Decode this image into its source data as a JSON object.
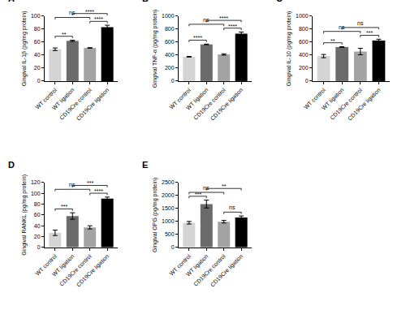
{
  "chart_data": [
    {
      "type": "bar",
      "panel": "A",
      "y_label": "Gingival IL-1β (pg/mg protein)",
      "categories": [
        "WT control",
        "WT ligation",
        "CD19Cre control",
        "CD19Cre ligation"
      ],
      "values": [
        49,
        62,
        51,
        83
      ],
      "errors": [
        2,
        1,
        0.5,
        3
      ],
      "colors": [
        "#d4d4d4",
        "#6b6b6b",
        "#a3a3a3",
        "#000000"
      ],
      "ylim": [
        0,
        100
      ],
      "yticks": [
        0,
        20,
        40,
        60,
        80,
        100
      ],
      "comparisons": [
        {
          "from": 0,
          "to": 1,
          "label": "**"
        },
        {
          "from": 0,
          "to": 2,
          "label": "ns"
        },
        {
          "from": 1,
          "to": 3,
          "label": "****"
        },
        {
          "from": 2,
          "to": 3,
          "label": "****"
        }
      ]
    },
    {
      "type": "bar",
      "panel": "B",
      "y_label": "Gingival TNF-α (pg/mg protein)",
      "categories": [
        "WT control",
        "WT ligation",
        "CD19Cre control",
        "CD19Cre ligation"
      ],
      "values": [
        375,
        565,
        410,
        730
      ],
      "errors": [
        5,
        5,
        10,
        25
      ],
      "colors": [
        "#d4d4d4",
        "#6b6b6b",
        "#a3a3a3",
        "#000000"
      ],
      "ylim": [
        0,
        1000
      ],
      "yticks": [
        0,
        200,
        400,
        600,
        800,
        1000
      ],
      "comparisons": [
        {
          "from": 0,
          "to": 1,
          "label": "****"
        },
        {
          "from": 0,
          "to": 2,
          "label": "ns"
        },
        {
          "from": 1,
          "to": 3,
          "label": "****"
        },
        {
          "from": 2,
          "to": 3,
          "label": "****"
        }
      ]
    },
    {
      "type": "bar",
      "panel": "C",
      "y_label": "Gingival IL-10 (pg/mg protein)",
      "categories": [
        "WT control",
        "WT ligation",
        "CD19Cre control",
        "CD19Cre ligation"
      ],
      "values": [
        385,
        525,
        455,
        625
      ],
      "errors": [
        25,
        5,
        50,
        20
      ],
      "colors": [
        "#d4d4d4",
        "#6b6b6b",
        "#a3a3a3",
        "#000000"
      ],
      "ylim": [
        0,
        1000
      ],
      "yticks": [
        0,
        200,
        400,
        600,
        800,
        1000
      ],
      "comparisons": [
        {
          "from": 0,
          "to": 1,
          "label": "**"
        },
        {
          "from": 0,
          "to": 2,
          "label": "ns"
        },
        {
          "from": 1,
          "to": 3,
          "label": "ns"
        },
        {
          "from": 2,
          "to": 3,
          "label": "***"
        }
      ]
    },
    {
      "type": "bar",
      "panel": "D",
      "y_label": "Gingival RANKL (pg/mg protein)",
      "categories": [
        "WT control",
        "WT ligation",
        "CD19Cre control",
        "CD19Cre ligation"
      ],
      "values": [
        27,
        58,
        37,
        90
      ],
      "errors": [
        5,
        6,
        3,
        3
      ],
      "colors": [
        "#d4d4d4",
        "#6b6b6b",
        "#a3a3a3",
        "#000000"
      ],
      "ylim": [
        0,
        120
      ],
      "yticks": [
        0,
        20,
        40,
        60,
        80,
        100,
        120
      ],
      "comparisons": [
        {
          "from": 0,
          "to": 1,
          "label": "***"
        },
        {
          "from": 0,
          "to": 2,
          "label": "ns"
        },
        {
          "from": 1,
          "to": 3,
          "label": "***"
        },
        {
          "from": 2,
          "to": 3,
          "label": "****"
        }
      ]
    },
    {
      "type": "bar",
      "panel": "E",
      "y_label": "Gingival OPG (pg/mg protein)",
      "categories": [
        "WT control",
        "WT ligation",
        "CD19Cre control",
        "CD19Cre ligation"
      ],
      "values": [
        950,
        1670,
        990,
        1150
      ],
      "errors": [
        50,
        150,
        50,
        60
      ],
      "colors": [
        "#d4d4d4",
        "#6b6b6b",
        "#a3a3a3",
        "#000000"
      ],
      "ylim": [
        0,
        2500
      ],
      "yticks": [
        0,
        500,
        1000,
        1500,
        2000,
        2500
      ],
      "comparisons": [
        {
          "from": 0,
          "to": 1,
          "label": "***"
        },
        {
          "from": 0,
          "to": 2,
          "label": "ns"
        },
        {
          "from": 1,
          "to": 3,
          "label": "**"
        },
        {
          "from": 2,
          "to": 3,
          "label": "ns"
        }
      ]
    }
  ]
}
